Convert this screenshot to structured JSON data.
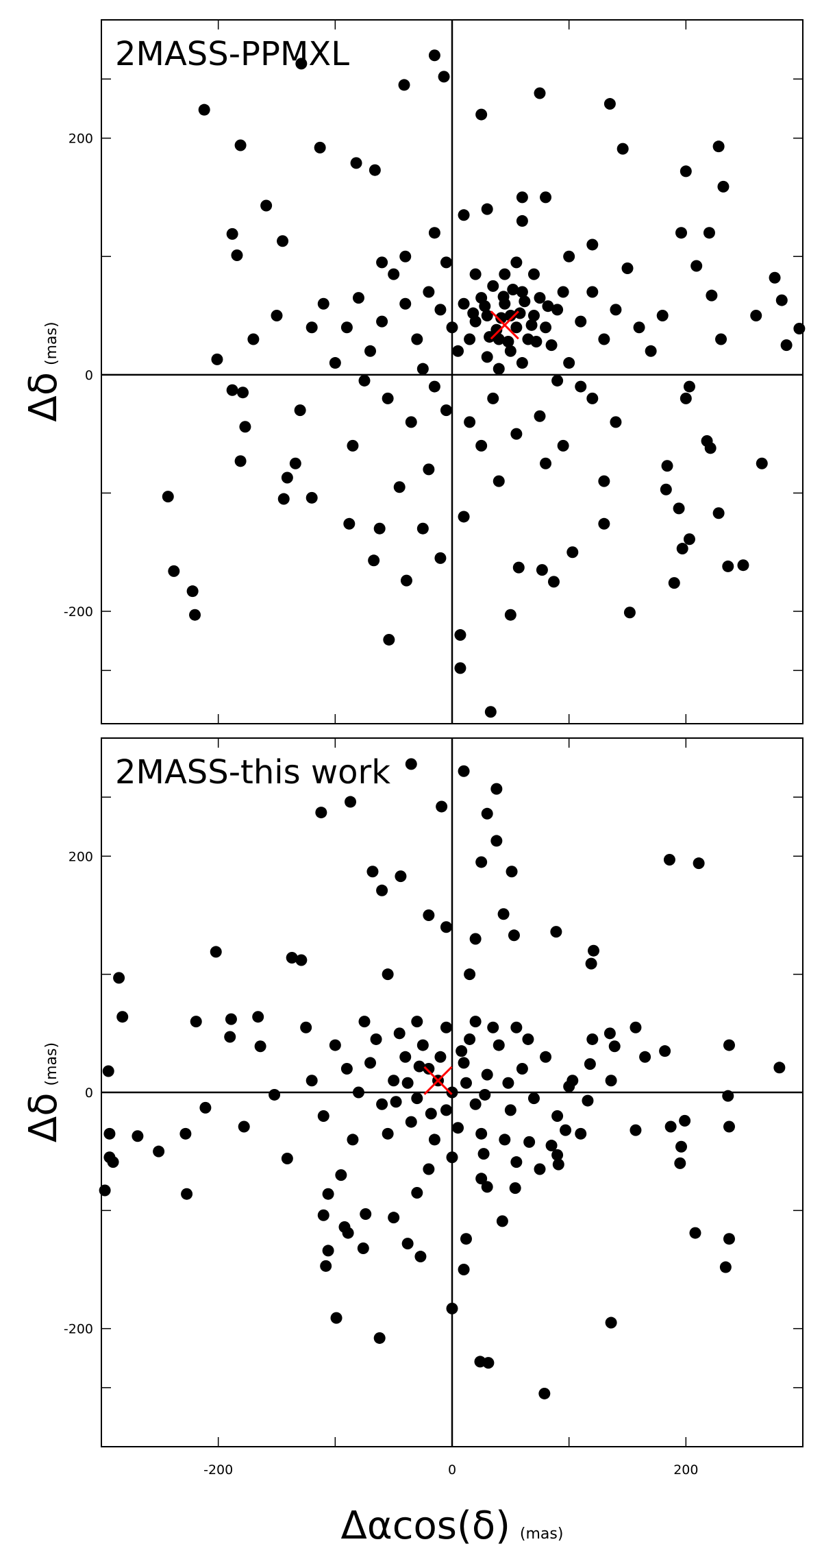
{
  "chart_data": [
    {
      "type": "scatter",
      "title": "2MASS-PPMXL",
      "y_label": "Δδ",
      "y_unit": "(mas)",
      "color": "#000000",
      "center": [
        45,
        42
      ],
      "center_color": "#ff0000",
      "zero_lines": true,
      "xlim": [
        -300,
        300
      ],
      "ylim": [
        -295,
        300
      ],
      "xtick_marks": [
        -200,
        -100,
        0,
        100,
        200
      ],
      "yticks": [
        -200,
        0,
        200
      ],
      "ytick_marks": [
        -250,
        -100,
        100,
        250
      ],
      "x": [
        -212,
        -181,
        -129,
        -15,
        -41,
        -7,
        25,
        75,
        135,
        228,
        200,
        146,
        -113,
        -82,
        -66,
        -188,
        -184,
        -159,
        -145,
        -201,
        -188,
        -179,
        -177,
        -181,
        -243,
        -238,
        -222,
        -220,
        -134,
        -141,
        -144,
        -120,
        -88,
        -62,
        -67,
        -54,
        -39,
        -10,
        7,
        7,
        33,
        50,
        57,
        77,
        87,
        152,
        190,
        197,
        203,
        228,
        236,
        249,
        265,
        297,
        286,
        282,
        276,
        260,
        232,
        220,
        196,
        209,
        222,
        183,
        194,
        130,
        103,
        218,
        221,
        184,
        203,
        30,
        45,
        55,
        40,
        60,
        20,
        70,
        50,
        35,
        65,
        25,
        80,
        15,
        75,
        45,
        55,
        10,
        90,
        85,
        30,
        60,
        40,
        5,
        95,
        70,
        20,
        50,
        42,
        58,
        38,
        62,
        48,
        28,
        68,
        52,
        32,
        72,
        18,
        82,
        44,
        0,
        -10,
        -20,
        -30,
        -40,
        -50,
        -60,
        -70,
        -80,
        -90,
        110,
        120,
        130,
        140,
        100,
        110,
        120,
        90,
        -15,
        -25,
        -5,
        15,
        35,
        55,
        75,
        95,
        -35,
        -55,
        -75,
        -100,
        -110,
        -120,
        160,
        150,
        170,
        -5,
        -15,
        10,
        30,
        60,
        80,
        -40,
        -60,
        100,
        120,
        140,
        -85,
        -20,
        10,
        40,
        -130,
        -150,
        -170,
        200,
        180,
        230,
        60,
        25,
        -45,
        -25,
        130,
        80
      ],
      "y": [
        224,
        194,
        263,
        270,
        245,
        252,
        220,
        238,
        229,
        193,
        172,
        191,
        192,
        179,
        173,
        119,
        101,
        143,
        113,
        13,
        -13,
        -15,
        -44,
        -73,
        -103,
        -166,
        -183,
        -203,
        -75,
        -87,
        -105,
        -104,
        -126,
        -130,
        -157,
        -224,
        -174,
        -155,
        -220,
        -248,
        -285,
        -203,
        -163,
        -165,
        -175,
        -201,
        -176,
        -147,
        -139,
        -117,
        -162,
        -161,
        -75,
        39,
        25,
        63,
        82,
        50,
        159,
        120,
        120,
        92,
        67,
        -97,
        -113,
        -126,
        -150,
        -56,
        -62,
        -77,
        -10,
        50,
        60,
        40,
        30,
        70,
        45,
        50,
        20,
        75,
        30,
        65,
        40,
        30,
        65,
        85,
        95,
        60,
        55,
        25,
        15,
        10,
        5,
        20,
        70,
        85,
        85,
        50,
        48,
        52,
        38,
        62,
        28,
        58,
        42,
        72,
        32,
        28,
        52,
        58,
        66,
        40,
        55,
        70,
        30,
        60,
        85,
        45,
        20,
        65,
        40,
        45,
        70,
        30,
        55,
        10,
        -10,
        -20,
        -5,
        -10,
        5,
        -30,
        -40,
        -20,
        -50,
        -35,
        -60,
        -40,
        -20,
        -5,
        10,
        60,
        40,
        40,
        90,
        20,
        95,
        120,
        135,
        140,
        130,
        150,
        100,
        95,
        100,
        110,
        -40,
        -60,
        -80,
        -120,
        -90,
        -30,
        50,
        30,
        -20,
        50,
        30,
        150,
        -60,
        -95,
        -130,
        -90,
        -75
      ]
    },
    {
      "type": "scatter",
      "title": "2MASS-this work",
      "y_label": "Δδ",
      "y_unit": "(mas)",
      "x_label": "Δαcos(δ)",
      "x_unit": "(mas)",
      "color": "#000000",
      "center": [
        -12,
        10
      ],
      "center_color": "#ff0000",
      "zero_lines": true,
      "xlim": [
        -300,
        300
      ],
      "ylim": [
        -300,
        300
      ],
      "xticks": [
        -200,
        0,
        200
      ],
      "xtick_marks": [
        -100,
        100
      ],
      "yticks": [
        -200,
        0,
        200
      ],
      "ytick_marks": [
        -250,
        -100,
        100,
        250
      ],
      "x": [
        -282,
        -294,
        -293,
        -293,
        -290,
        -297,
        -285,
        -269,
        -251,
        -228,
        -227,
        -219,
        -211,
        -202,
        -189,
        -190,
        -178,
        -166,
        -164,
        -152,
        -141,
        -137,
        -129,
        -112,
        -87,
        -68,
        -44,
        -60,
        -35,
        10,
        -9,
        30,
        38,
        38,
        25,
        51,
        44,
        53,
        89,
        121,
        119,
        186,
        211,
        237,
        236,
        280,
        237,
        199,
        196,
        195,
        187,
        208,
        237,
        234,
        136,
        79,
        31,
        24,
        0,
        10,
        12,
        43,
        -62,
        -99,
        -108,
        -106,
        -89,
        -76,
        -27,
        -38,
        -50,
        -74,
        -92,
        -106,
        -110,
        157,
        157,
        165,
        182,
        136,
        135,
        139,
        103,
        118,
        116,
        120,
        97,
        90,
        91,
        66,
        55,
        54,
        25,
        27,
        -12,
        -20,
        0,
        -30,
        10,
        -40,
        20,
        -50,
        30,
        -25,
        5,
        -35,
        15,
        -5,
        40,
        -60,
        50,
        -45,
        25,
        -15,
        60,
        -70,
        70,
        -80,
        35,
        -10,
        -55,
        45,
        -30,
        0,
        80,
        -90,
        90,
        -65,
        65,
        -20,
        20,
        -100,
        100,
        -85,
        85,
        -5,
        12,
        -28,
        -38,
        28,
        8,
        -18,
        -48,
        48,
        55,
        -75,
        -110,
        110,
        -120,
        -95,
        -30,
        30,
        -125,
        75,
        15,
        -20,
        -55,
        -5,
        20
      ],
      "y": [
        64,
        18,
        -35,
        -55,
        -59,
        -83,
        97,
        -37,
        -50,
        -35,
        -86,
        60,
        -13,
        119,
        62,
        47,
        -29,
        64,
        39,
        -2,
        -56,
        114,
        112,
        237,
        246,
        187,
        183,
        171,
        278,
        272,
        242,
        236,
        257,
        213,
        195,
        187,
        151,
        133,
        136,
        120,
        109,
        197,
        194,
        40,
        -3,
        21,
        -29,
        -24,
        -46,
        -60,
        -29,
        -119,
        -124,
        -148,
        -195,
        -255,
        -229,
        -228,
        -183,
        -150,
        -124,
        -109,
        -208,
        -191,
        -147,
        -134,
        -119,
        -132,
        -139,
        -128,
        -106,
        -103,
        -114,
        -86,
        -104,
        -32,
        55,
        30,
        35,
        10,
        50,
        39,
        10,
        24,
        -7,
        45,
        -32,
        -53,
        -61,
        -42,
        -59,
        -81,
        -73,
        -52,
        10,
        20,
        0,
        -5,
        25,
        30,
        -10,
        10,
        15,
        40,
        -30,
        -25,
        45,
        55,
        40,
        -10,
        -15,
        50,
        -35,
        -40,
        20,
        25,
        -5,
        0,
        55,
        30,
        -35,
        -40,
        60,
        -55,
        30,
        20,
        -20,
        45,
        45,
        -65,
        60,
        40,
        5,
        -40,
        -45,
        -15,
        8,
        22,
        8,
        -2,
        35,
        -18,
        -8,
        8,
        55,
        60,
        -20,
        -35,
        10,
        -70,
        -85,
        -80,
        55,
        -65,
        100,
        150,
        100,
        140,
        130
      ]
    }
  ]
}
